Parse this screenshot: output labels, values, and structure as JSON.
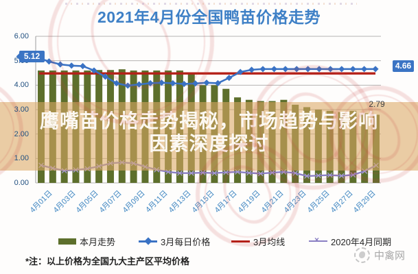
{
  "title": "2021年4月份全国鸭苗价格走势",
  "overlay": {
    "line1": "鹰嘴苗价格走势揭秘，市场趋势与影响",
    "line2": "因素深度探讨"
  },
  "callouts": {
    "march_first": "5.12",
    "march_last": "4.66",
    "april_last": "2.79"
  },
  "legend": {
    "items": [
      {
        "label": "本月走势",
        "type": "bar",
        "color": "#5d6f2c"
      },
      {
        "label": "3月每日价格",
        "type": "line-diamond",
        "color": "#3a72c4"
      },
      {
        "label": "3月均线",
        "type": "line",
        "color": "#b42018"
      },
      {
        "label": "2020年4月同期",
        "type": "line-x",
        "color": "#8a7fc3"
      }
    ]
  },
  "footnote": "*注：以上价格为全国九大主产区平均价格",
  "brand": {
    "name": "中禽网",
    "icon": "rooster-circle-icon"
  },
  "chart_data": {
    "type": "bar",
    "title": "2021年4月份全国鸭苗价格走势",
    "ylim": [
      0,
      6
    ],
    "grid": true,
    "legend_position": "bottom",
    "y_ticks": [
      "6.00",
      "5.00",
      "4.00",
      "3.00",
      "2.00",
      "1.00",
      "0.00"
    ],
    "x_tick_labels": [
      "4月01日",
      "4月03日",
      "4月05日",
      "4月07日",
      "4月09日",
      "4月11日",
      "4月13日",
      "4月15日",
      "4月17日",
      "4月19日",
      "4月21日",
      "4月23日",
      "4月25日",
      "4月27日",
      "4月29日"
    ],
    "series": [
      {
        "name": "本月走势",
        "type": "bar",
        "color": "#5d6f2c",
        "values": [
          4.6,
          4.6,
          4.6,
          4.6,
          4.6,
          4.62,
          4.62,
          4.65,
          4.6,
          4.6,
          4.6,
          4.6,
          4.6,
          4.45,
          4.0,
          4.0,
          3.85,
          3.5,
          3.4,
          3.35,
          3.35,
          3.4,
          3.2,
          3.1,
          3.0,
          2.95,
          2.9,
          2.95,
          2.85,
          2.79
        ],
        "last_value_label": "2.79"
      },
      {
        "name": "3月每日价格",
        "type": "line",
        "marker": "diamond",
        "color": "#3a72c4",
        "values": [
          5.12,
          4.97,
          4.85,
          4.8,
          4.78,
          4.6,
          4.35,
          4.08,
          3.98,
          4.03,
          4.08,
          4.1,
          4.08,
          4.05,
          4.07,
          4.1,
          4.08,
          4.3,
          4.54,
          4.63,
          4.66,
          4.66,
          4.66,
          4.66,
          4.66,
          4.66,
          4.66,
          4.66,
          4.66,
          4.66,
          4.66
        ],
        "first_value_label": "5.12",
        "last_value_label": "4.66"
      },
      {
        "name": "3月均线",
        "type": "hline",
        "color": "#b42018",
        "value": 4.48
      },
      {
        "name": "2020年4月同期",
        "type": "line",
        "marker": "x",
        "color": "#8a7fc3",
        "values": [
          0.72,
          0.6,
          0.5,
          0.53,
          0.58,
          0.68,
          0.8,
          0.84,
          0.8,
          0.66,
          0.54,
          0.45,
          0.4,
          0.4,
          0.42,
          0.4,
          0.43,
          0.45,
          0.41,
          0.38,
          0.42,
          0.45,
          0.4,
          0.28,
          0.3,
          0.32,
          0.29,
          0.33,
          0.48,
          0.72
        ]
      }
    ]
  }
}
